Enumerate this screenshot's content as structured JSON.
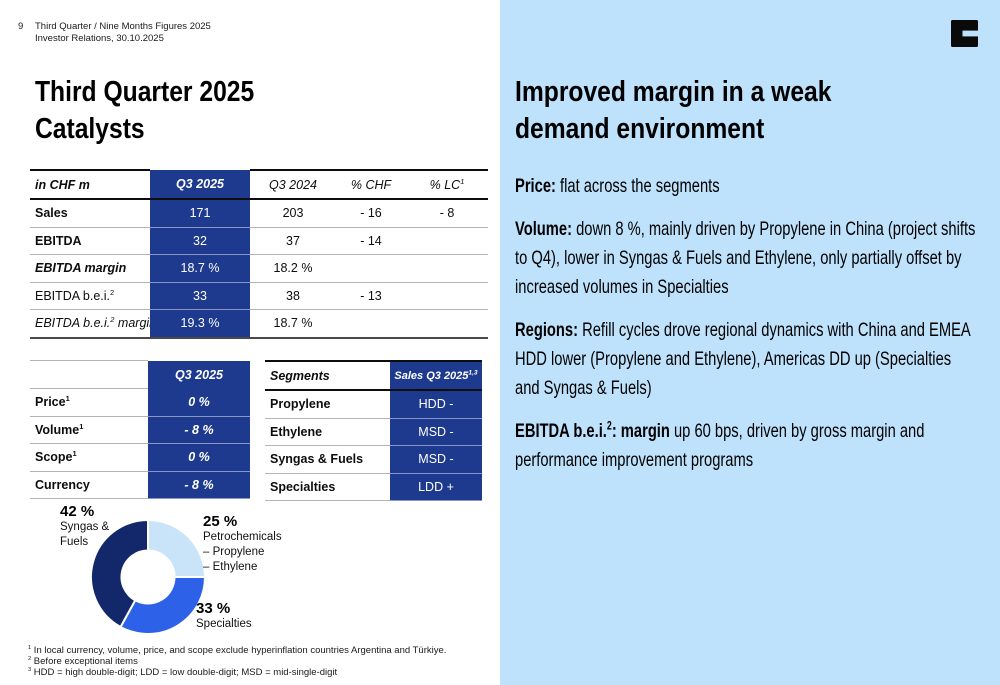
{
  "page": {
    "number": "9",
    "header_line1": "Third Quarter / Nine Months Figures 2025",
    "header_line2": "Investor Relations, 30.10.2025"
  },
  "colors": {
    "table_navy": "#1e3a8e",
    "panel_blue": "#bee2fc",
    "donut_dark_navy": "#13276b",
    "donut_medium_blue": "#2d61e8",
    "donut_light_blue": "#c9e4f9"
  },
  "left": {
    "title_line1": "Third Quarter 2025",
    "title_line2": "Catalysts",
    "kpi_table": {
      "headers": [
        "in CHF m",
        "Q3 2025",
        "Q3 2024",
        "% CHF",
        "% LC^(1)"
      ],
      "rows": [
        {
          "label": "Sales",
          "style": "r-bold",
          "cells": [
            "171",
            "203",
            "- 16",
            "- 8"
          ]
        },
        {
          "label": "EBITDA",
          "style": "r-bold",
          "cells": [
            "32",
            "37",
            "- 14",
            ""
          ]
        },
        {
          "label": "EBITDA margin",
          "style": "r-bolditalic",
          "cells": [
            "18.7 %",
            "18.2 %",
            "",
            ""
          ]
        },
        {
          "label": "EBITDA b.e.i.^(2)",
          "style": "r-regular",
          "cells": [
            "33",
            "38",
            "- 13",
            ""
          ]
        },
        {
          "label": "EBITDA b.e.i.^(2) margin",
          "style": "r-italic",
          "cells": [
            "19.3 %",
            "18.7 %",
            "",
            ""
          ]
        }
      ]
    },
    "driver_table": {
      "headers": [
        "",
        "Q3 2025"
      ],
      "rows": [
        {
          "label": "Price^(1)",
          "value": "0 %"
        },
        {
          "label": "Volume^(1)",
          "value": "- 8 %"
        },
        {
          "label": "Scope^(1)",
          "value": "0 %"
        },
        {
          "label": "Currency",
          "value": "- 8 %"
        }
      ]
    },
    "segments_table": {
      "headers": [
        "Segments",
        "Sales Q3 2025^(1,3)"
      ],
      "rows": [
        {
          "label": "Propylene",
          "value": "HDD -"
        },
        {
          "label": "Ethylene",
          "value": "MSD -"
        },
        {
          "label": "Syngas & Fuels",
          "value": "MSD -"
        },
        {
          "label": "Specialties",
          "value": "LDD +"
        }
      ]
    },
    "footnotes": [
      "^(1) In local currency, volume, price, and scope exclude hyperinflation countries Argentina and Türkiye.",
      "^(2) Before exceptional items",
      "^(3) HDD = high double-digit; LDD = low double-digit; MSD = mid-single-digit"
    ]
  },
  "right": {
    "title_line1": "Improved margin in a weak",
    "title_line2": "demand environment",
    "paragraphs": [
      {
        "lead": "Price:",
        "text": "flat across the segments"
      },
      {
        "lead": "Volume:",
        "text": "down 8 %, mainly driven by Propylene in China (project shifts to Q4), lower in Syngas & Fuels and Ethylene, only partially offset by increased volumes in Specialties"
      },
      {
        "lead": "Regions:",
        "text": "Refill cycles drove regional dynamics with China and EMEA HDD lower (Propylene and Ethylene), Americas DD up (Specialties and Syngas & Fuels)"
      },
      {
        "lead": "EBITDA b.e.i.^(2): margin",
        "text": "up 60 bps, driven by gross margin and performance improvement programs"
      }
    ]
  },
  "chart_data": {
    "type": "pie",
    "subtype": "donut",
    "start_angle_deg": -90,
    "direction": "clockwise",
    "segments": [
      {
        "name": "Petrochemicals",
        "value_pct": 25,
        "pct_label": "25 %",
        "label_lines": [
          "Petrochemicals",
          "– Propylene",
          "– Ethylene"
        ],
        "color": "#c9e4f9"
      },
      {
        "name": "Specialties",
        "value_pct": 33,
        "pct_label": "33 %",
        "label_lines": [
          "Specialties"
        ],
        "color": "#2d61e8"
      },
      {
        "name": "Syngas & Fuels",
        "value_pct": 42,
        "pct_label": "42 %",
        "label_lines": [
          "Syngas &",
          "Fuels"
        ],
        "color": "#13276b"
      }
    ]
  }
}
